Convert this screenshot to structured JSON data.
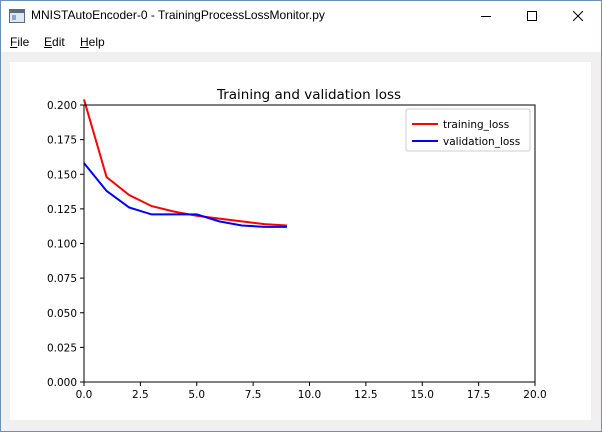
{
  "window": {
    "title": "MNISTAutoEncoder-0 - TrainingProcessLossMonitor.py",
    "controls": {
      "minimize": "minimize",
      "maximize": "maximize",
      "close": "close"
    }
  },
  "menu": {
    "items": [
      {
        "label": "File",
        "mnemonic": "F",
        "rest": "ile"
      },
      {
        "label": "Edit",
        "mnemonic": "E",
        "rest": "dit"
      },
      {
        "label": "Help",
        "mnemonic": "H",
        "rest": "elp"
      }
    ]
  },
  "chart_data": {
    "type": "line",
    "title": "Training and validation loss",
    "xlabel": "",
    "ylabel": "",
    "xlim": [
      0,
      20
    ],
    "ylim": [
      0,
      0.2
    ],
    "x_ticks": [
      "0.0",
      "2.5",
      "5.0",
      "7.5",
      "10.0",
      "12.5",
      "15.0",
      "17.5",
      "20.0"
    ],
    "y_ticks": [
      "0.000",
      "0.025",
      "0.050",
      "0.075",
      "0.100",
      "0.125",
      "0.150",
      "0.175",
      "0.200"
    ],
    "grid": false,
    "legend_position": "top-right",
    "x": [
      0,
      1,
      2,
      3,
      4,
      5,
      6,
      7,
      8,
      9
    ],
    "series": [
      {
        "name": "training_loss",
        "color": "#ff0000",
        "values": [
          0.204,
          0.148,
          0.135,
          0.127,
          0.123,
          0.12,
          0.118,
          0.116,
          0.114,
          0.113
        ]
      },
      {
        "name": "validation_loss",
        "color": "#0000ff",
        "values": [
          0.158,
          0.138,
          0.126,
          0.121,
          0.121,
          0.121,
          0.116,
          0.113,
          0.112,
          0.112
        ]
      }
    ]
  }
}
